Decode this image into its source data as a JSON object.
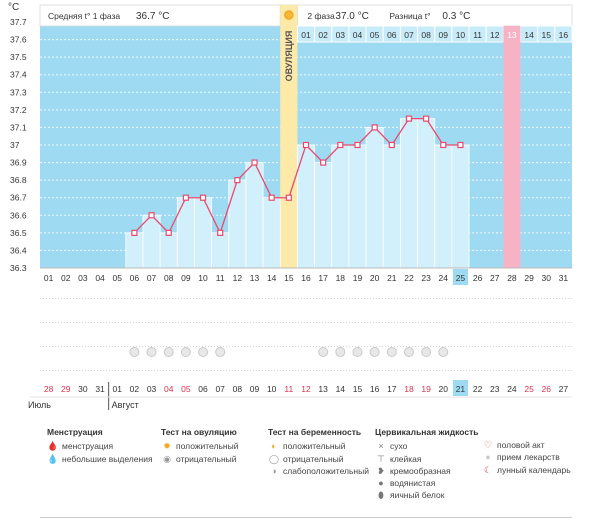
{
  "header": {
    "unit": "°C",
    "phase1_label": "Средняя t° 1 фаза",
    "phase1_value": "36.7 °C",
    "phase2_label": "2 фаза",
    "phase2_value": "37.0 °C",
    "diff_label": "Разница t°",
    "diff_value": "0.3 °C",
    "ovulation_label": "ОВУЛЯЦИЯ"
  },
  "chart_data": {
    "type": "line",
    "y_ticks": [
      "36.3",
      "36.4",
      "36.5",
      "36.6",
      "36.7",
      "36.8",
      "36.9",
      "37",
      "37.1",
      "37.2",
      "37.3",
      "37.4",
      "37.5",
      "37.6",
      "37.7"
    ],
    "ylim": [
      36.3,
      37.7
    ],
    "cycle_days": [
      "01",
      "02",
      "03",
      "04",
      "05",
      "06",
      "07",
      "08",
      "09",
      "10",
      "11",
      "12",
      "13",
      "14",
      "15",
      "16",
      "17",
      "18",
      "19",
      "20",
      "21",
      "22",
      "23",
      "24",
      "25",
      "26",
      "27",
      "28",
      "29",
      "30",
      "31"
    ],
    "series": [
      {
        "values": [
          null,
          null,
          null,
          null,
          null,
          36.5,
          36.6,
          36.5,
          36.7,
          36.7,
          36.5,
          36.8,
          36.9,
          36.7,
          36.7,
          37.0,
          36.9,
          37.0,
          37.0,
          37.1,
          37.0,
          37.15,
          37.15,
          37.0,
          37.0,
          null,
          null,
          null,
          null,
          null,
          null
        ]
      }
    ],
    "ovulation_day": "15",
    "current_day": "25",
    "highlight_day": "28",
    "phase2_days": [
      "01",
      "02",
      "03",
      "04",
      "05",
      "06",
      "07",
      "08",
      "09",
      "10",
      "11",
      "12",
      "13",
      "14",
      "15",
      "16"
    ],
    "test_days": [
      "06",
      "07",
      "08",
      "09",
      "10",
      "11",
      "17",
      "18",
      "19",
      "20",
      "21",
      "22",
      "23",
      "24"
    ],
    "dates": [
      "28",
      "29",
      "30",
      "31",
      "01",
      "02",
      "03",
      "04",
      "05",
      "06",
      "07",
      "08",
      "09",
      "10",
      "11",
      "12",
      "13",
      "14",
      "15",
      "16",
      "17",
      "18",
      "19",
      "20",
      "21",
      "22",
      "23",
      "24",
      "25",
      "26",
      "27"
    ],
    "red_dates": [
      "28",
      "29",
      "04",
      "05",
      "11",
      "12",
      "18",
      "19",
      "25",
      "26"
    ],
    "current_date": "21",
    "months": [
      "Июль",
      "Август"
    ]
  },
  "legend": {
    "groups": [
      {
        "title": "Менструация",
        "items": [
          {
            "label": "менструация",
            "icon": "drop-icon",
            "symbol": "🩸",
            "color": "#e0405a"
          },
          {
            "label": "небольшие выделения",
            "icon": "small-drop-icon",
            "symbol": "💧",
            "color": "#e0405a"
          }
        ]
      },
      {
        "title": "Тест на овуляцию",
        "items": [
          {
            "label": "положительный",
            "icon": "sun-icon",
            "symbol": "✹",
            "color": "#f3a623"
          },
          {
            "label": "отрицательный",
            "icon": "dot-icon",
            "symbol": "◉",
            "color": "#999999"
          }
        ]
      },
      {
        "title": "Тест на беременность",
        "items": [
          {
            "label": "положительный",
            "icon": "positive-test-icon",
            "symbol": "◐",
            "color": "#f3a623"
          },
          {
            "label": "отрицательный",
            "icon": "negative-test-icon",
            "symbol": "◯",
            "color": "#999999"
          },
          {
            "label": "слабоположительный",
            "icon": "weak-test-icon",
            "symbol": "◑",
            "color": "#999999"
          }
        ]
      },
      {
        "title": "Цервикальная жидкость",
        "items": [
          {
            "label": "сухо",
            "icon": "dry-icon",
            "symbol": "×",
            "color": "#777777"
          },
          {
            "label": "клейкая",
            "icon": "sticky-icon",
            "symbol": "⊤",
            "color": "#777777"
          },
          {
            "label": "кремообразная",
            "icon": "creamy-icon",
            "symbol": "❥",
            "color": "#777777"
          },
          {
            "label": "водянистая",
            "icon": "watery-icon",
            "symbol": "●",
            "color": "#777777"
          },
          {
            "label": "яичный белок",
            "icon": "egg-white-icon",
            "symbol": "⬮",
            "color": "#777777"
          }
        ]
      },
      {
        "title": "",
        "items": [
          {
            "label": "половой акт",
            "icon": "heart-icon",
            "symbol": "♡",
            "color": "#e0405a"
          },
          {
            "label": "прием лекарств",
            "icon": "pill-icon",
            "symbol": "●",
            "color": "#cccccc"
          },
          {
            "label": "лунный календарь",
            "icon": "moon-icon",
            "symbol": "☾",
            "color": "#e0405a"
          }
        ]
      }
    ]
  }
}
